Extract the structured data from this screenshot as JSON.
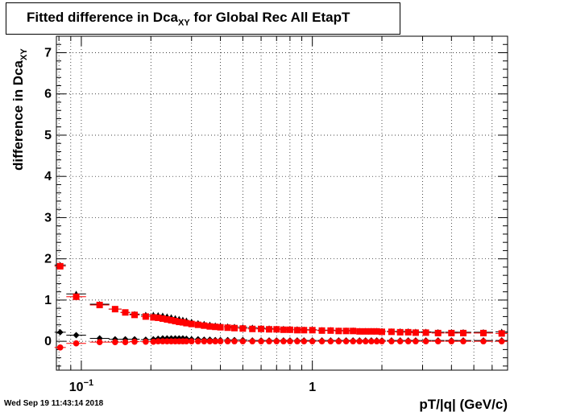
{
  "title": {
    "prefix": "Fitted difference in Dca",
    "sub": "XY",
    "suffix": " for Global Rec All EtapT"
  },
  "timestamp": "Wed Sep 19 11:43:14 2018",
  "chart_data": {
    "type": "scatter",
    "xlabel": "pT/|q| (GeV/c)",
    "ylabel": {
      "prefix": "difference in Dca",
      "sub": "XY"
    },
    "xscale": "log",
    "xlim": [
      0.078,
      7.0
    ],
    "ylim": [
      -0.7,
      7.4
    ],
    "grid": true,
    "x_tick_labels": [
      {
        "x": 0.1,
        "label": "10",
        "exp": "−1"
      },
      {
        "x": 1,
        "label": "1",
        "exp": ""
      }
    ],
    "y_ticks": [
      0,
      1,
      2,
      3,
      4,
      5,
      6,
      7
    ],
    "series": [
      {
        "marker": "diamond",
        "color": "#000000",
        "points": [
          [
            0.081,
            0.22
          ],
          [
            0.095,
            0.15
          ],
          [
            0.12,
            0.07
          ],
          [
            0.14,
            0.05
          ],
          [
            0.155,
            0.05
          ],
          [
            0.17,
            0.05
          ],
          [
            0.19,
            0.04
          ],
          [
            0.205,
            0.05
          ],
          [
            0.215,
            0.06
          ],
          [
            0.225,
            0.07
          ],
          [
            0.235,
            0.07
          ],
          [
            0.245,
            0.07
          ],
          [
            0.255,
            0.07
          ],
          [
            0.265,
            0.07
          ],
          [
            0.275,
            0.07
          ],
          [
            0.285,
            0.06
          ],
          [
            0.3,
            0.05
          ],
          [
            0.32,
            0.05
          ],
          [
            0.34,
            0.04
          ],
          [
            0.36,
            0.04
          ],
          [
            0.38,
            0.03
          ],
          [
            0.4,
            0.03
          ],
          [
            0.43,
            0.03
          ],
          [
            0.46,
            0.03
          ],
          [
            0.5,
            0.03
          ],
          [
            0.55,
            0.02
          ],
          [
            0.6,
            0.02
          ],
          [
            0.65,
            0.02
          ],
          [
            0.7,
            0.02
          ],
          [
            0.75,
            0.02
          ],
          [
            0.8,
            0.02
          ],
          [
            0.86,
            0.02
          ],
          [
            0.92,
            0.02
          ],
          [
            1.0,
            0.02
          ],
          [
            1.1,
            0.02
          ],
          [
            1.2,
            0.02
          ],
          [
            1.3,
            0.02
          ],
          [
            1.4,
            0.02
          ],
          [
            1.5,
            0.02
          ],
          [
            1.6,
            0.02
          ],
          [
            1.7,
            0.02
          ],
          [
            1.8,
            0.02
          ],
          [
            1.9,
            0.02
          ],
          [
            2.0,
            0.02
          ],
          [
            2.2,
            0.02
          ],
          [
            2.4,
            0.02
          ],
          [
            2.6,
            0.02
          ],
          [
            2.8,
            0.02
          ],
          [
            3.1,
            0.02
          ],
          [
            3.5,
            0.02
          ],
          [
            4.0,
            0.02
          ],
          [
            4.5,
            0.02
          ],
          [
            5.5,
            0.02
          ],
          [
            6.6,
            0.02
          ]
        ]
      },
      {
        "marker": "circle",
        "color": "#ff0000",
        "points": [
          [
            0.081,
            -0.15
          ],
          [
            0.095,
            -0.05
          ],
          [
            0.12,
            -0.02
          ],
          [
            0.14,
            -0.02
          ],
          [
            0.155,
            -0.02
          ],
          [
            0.17,
            -0.01
          ],
          [
            0.19,
            -0.01
          ],
          [
            0.205,
            -0.01
          ],
          [
            0.215,
            0.0
          ],
          [
            0.225,
            0.0
          ],
          [
            0.235,
            0.0
          ],
          [
            0.245,
            0.0
          ],
          [
            0.255,
            0.0
          ],
          [
            0.265,
            0.0
          ],
          [
            0.275,
            0.0
          ],
          [
            0.285,
            0.0
          ],
          [
            0.3,
            0.0
          ],
          [
            0.32,
            0.0
          ],
          [
            0.34,
            0.0
          ],
          [
            0.36,
            0.0
          ],
          [
            0.38,
            0.0
          ],
          [
            0.4,
            0.0
          ],
          [
            0.43,
            0.0
          ],
          [
            0.46,
            0.0
          ],
          [
            0.5,
            0.0
          ],
          [
            0.55,
            0.0
          ],
          [
            0.6,
            0.0
          ],
          [
            0.65,
            0.0
          ],
          [
            0.7,
            0.0
          ],
          [
            0.75,
            0.0
          ],
          [
            0.8,
            0.0
          ],
          [
            0.86,
            0.0
          ],
          [
            0.92,
            0.0
          ],
          [
            1.0,
            0.0
          ],
          [
            1.1,
            0.0
          ],
          [
            1.2,
            0.0
          ],
          [
            1.3,
            0.0
          ],
          [
            1.4,
            0.0
          ],
          [
            1.5,
            0.0
          ],
          [
            1.6,
            0.0
          ],
          [
            1.7,
            0.0
          ],
          [
            1.8,
            0.0
          ],
          [
            1.9,
            0.0
          ],
          [
            2.0,
            0.0
          ],
          [
            2.2,
            0.0
          ],
          [
            2.4,
            0.0
          ],
          [
            2.6,
            0.0
          ],
          [
            2.8,
            0.0
          ],
          [
            3.1,
            0.0
          ],
          [
            3.5,
            0.0
          ],
          [
            4.0,
            0.0
          ],
          [
            4.5,
            0.0
          ],
          [
            5.5,
            0.0
          ],
          [
            6.6,
            0.0
          ]
        ]
      },
      {
        "marker": "triangle",
        "color": "#000000",
        "points": [
          [
            0.081,
            1.85
          ],
          [
            0.095,
            1.15
          ],
          [
            0.12,
            0.9
          ],
          [
            0.14,
            0.78
          ],
          [
            0.155,
            0.7
          ],
          [
            0.17,
            0.66
          ],
          [
            0.19,
            0.64
          ],
          [
            0.205,
            0.64
          ],
          [
            0.215,
            0.63
          ],
          [
            0.225,
            0.62
          ],
          [
            0.235,
            0.6
          ],
          [
            0.245,
            0.58
          ],
          [
            0.255,
            0.56
          ],
          [
            0.265,
            0.54
          ],
          [
            0.275,
            0.52
          ],
          [
            0.285,
            0.5
          ],
          [
            0.3,
            0.47
          ],
          [
            0.32,
            0.44
          ],
          [
            0.34,
            0.42
          ],
          [
            0.36,
            0.4
          ],
          [
            0.38,
            0.38
          ],
          [
            0.4,
            0.37
          ],
          [
            0.43,
            0.36
          ],
          [
            0.46,
            0.35
          ],
          [
            0.5,
            0.34
          ],
          [
            0.55,
            0.33
          ],
          [
            0.6,
            0.32
          ],
          [
            0.65,
            0.31
          ],
          [
            0.7,
            0.3
          ],
          [
            0.75,
            0.3
          ],
          [
            0.8,
            0.29
          ],
          [
            0.86,
            0.29
          ],
          [
            0.92,
            0.28
          ],
          [
            1.0,
            0.28
          ],
          [
            1.1,
            0.27
          ],
          [
            1.2,
            0.27
          ],
          [
            1.3,
            0.26
          ],
          [
            1.4,
            0.26
          ],
          [
            1.5,
            0.26
          ],
          [
            1.6,
            0.25
          ],
          [
            1.7,
            0.25
          ],
          [
            1.8,
            0.25
          ],
          [
            1.9,
            0.25
          ],
          [
            2.0,
            0.25
          ],
          [
            2.2,
            0.24
          ],
          [
            2.4,
            0.24
          ],
          [
            2.6,
            0.24
          ],
          [
            2.8,
            0.23
          ],
          [
            3.1,
            0.23
          ],
          [
            3.5,
            0.22
          ],
          [
            4.0,
            0.22
          ],
          [
            4.5,
            0.22
          ],
          [
            5.5,
            0.22
          ],
          [
            6.6,
            0.23
          ]
        ]
      },
      {
        "marker": "square",
        "color": "#ff0000",
        "points": [
          [
            0.081,
            1.82
          ],
          [
            0.095,
            1.08
          ],
          [
            0.12,
            0.88
          ],
          [
            0.14,
            0.78
          ],
          [
            0.155,
            0.7
          ],
          [
            0.17,
            0.64
          ],
          [
            0.19,
            0.6
          ],
          [
            0.205,
            0.58
          ],
          [
            0.215,
            0.57
          ],
          [
            0.225,
            0.55
          ],
          [
            0.235,
            0.53
          ],
          [
            0.245,
            0.51
          ],
          [
            0.255,
            0.49
          ],
          [
            0.265,
            0.47
          ],
          [
            0.275,
            0.46
          ],
          [
            0.285,
            0.44
          ],
          [
            0.3,
            0.42
          ],
          [
            0.32,
            0.4
          ],
          [
            0.34,
            0.38
          ],
          [
            0.36,
            0.36
          ],
          [
            0.38,
            0.35
          ],
          [
            0.4,
            0.34
          ],
          [
            0.43,
            0.33
          ],
          [
            0.46,
            0.32
          ],
          [
            0.5,
            0.31
          ],
          [
            0.55,
            0.3
          ],
          [
            0.6,
            0.3
          ],
          [
            0.65,
            0.29
          ],
          [
            0.7,
            0.29
          ],
          [
            0.75,
            0.28
          ],
          [
            0.8,
            0.28
          ],
          [
            0.86,
            0.27
          ],
          [
            0.92,
            0.27
          ],
          [
            1.0,
            0.27
          ],
          [
            1.1,
            0.26
          ],
          [
            1.2,
            0.26
          ],
          [
            1.3,
            0.25
          ],
          [
            1.4,
            0.25
          ],
          [
            1.5,
            0.25
          ],
          [
            1.6,
            0.24
          ],
          [
            1.7,
            0.24
          ],
          [
            1.8,
            0.24
          ],
          [
            1.9,
            0.24
          ],
          [
            2.0,
            0.23
          ],
          [
            2.2,
            0.23
          ],
          [
            2.4,
            0.22
          ],
          [
            2.6,
            0.22
          ],
          [
            2.8,
            0.21
          ],
          [
            3.1,
            0.21
          ],
          [
            3.5,
            0.2
          ],
          [
            4.0,
            0.2
          ],
          [
            4.5,
            0.2
          ],
          [
            5.5,
            0.2
          ],
          [
            6.6,
            0.19
          ]
        ]
      }
    ]
  }
}
